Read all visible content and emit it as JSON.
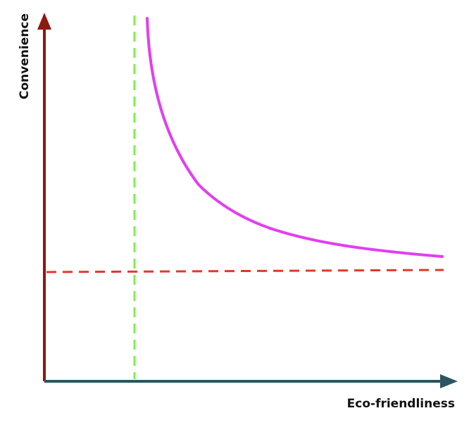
{
  "labels": {
    "y_axis": "Convenience",
    "x_axis": "Eco-friendliness"
  },
  "colors": {
    "y_axis": "#8b1a10",
    "x_axis": "#2c5560",
    "curve": "#e23ef0",
    "vertical_threshold": "#7ef04a",
    "horizontal_threshold": "#e0392b"
  }
}
